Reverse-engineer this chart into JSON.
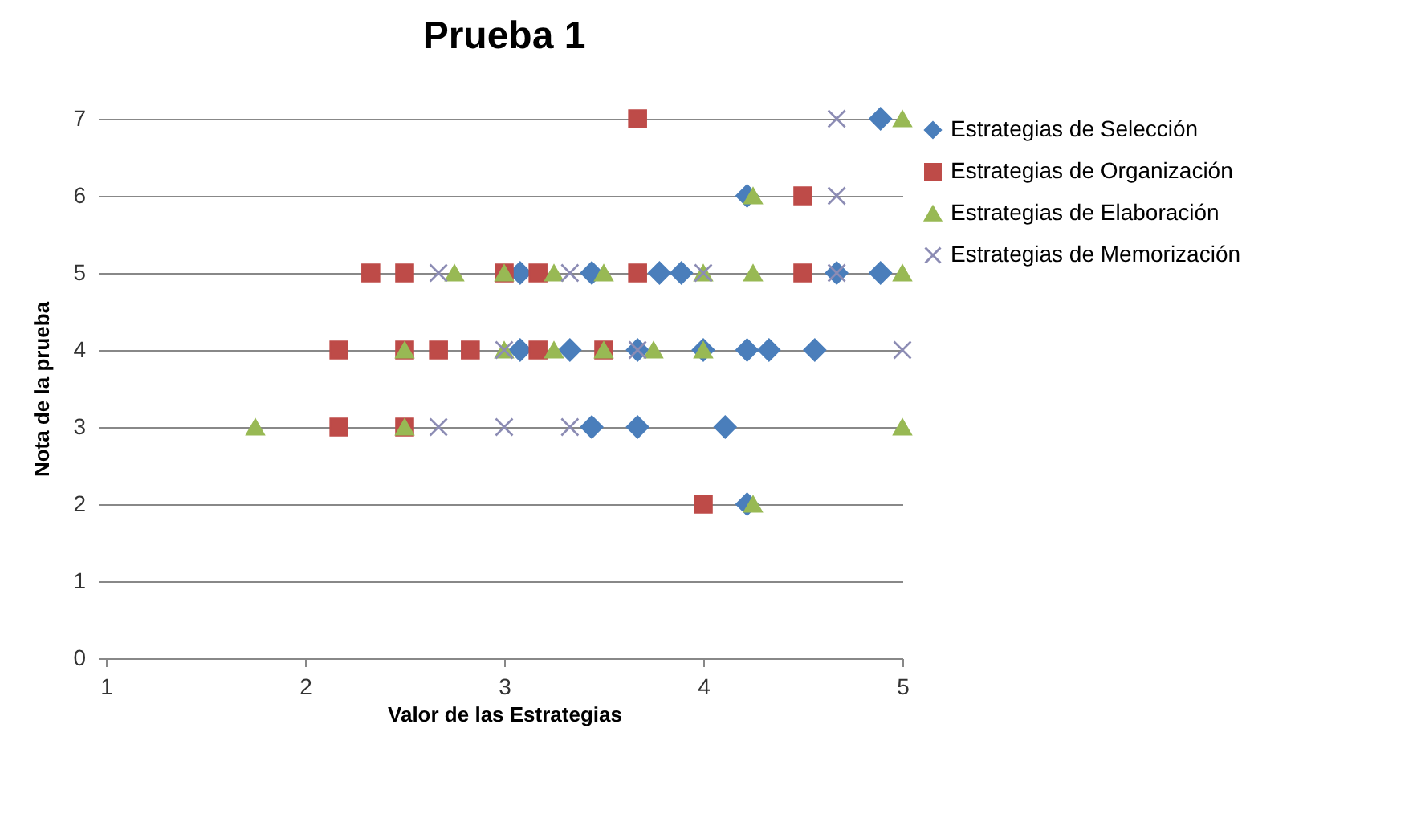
{
  "chart_data": {
    "type": "scatter",
    "title": "Prueba 1",
    "xlabel": "Valor de las Estrategias",
    "ylabel": "Nota de la prueba",
    "xlim": [
      1,
      5
    ],
    "xticks": [
      1,
      2,
      3,
      4,
      5
    ],
    "ylim": [
      0,
      7
    ],
    "yticks": [
      0,
      1,
      2,
      3,
      4,
      5,
      6,
      7
    ],
    "grid": "y",
    "legend": "right",
    "series": [
      {
        "name": "Estrategias de Selección",
        "color": "#4a7ebb",
        "marker": "diamond",
        "x": [
          4.89,
          4.22,
          3.08,
          3.44,
          3.78,
          3.89,
          4.67,
          4.89,
          3.08,
          3.33,
          3.67,
          4,
          4.22,
          4.33,
          4.56,
          3.44,
          3.67,
          4.11,
          4.22
        ],
        "values": [
          7,
          6,
          5,
          5,
          5,
          5,
          5,
          5,
          4,
          4,
          4,
          4,
          4,
          4,
          4,
          3,
          3,
          3,
          2
        ]
      },
      {
        "name": "Estrategias de Organización",
        "color": "#be4b48",
        "marker": "square",
        "x": [
          3.67,
          4.5,
          2.33,
          2.5,
          3,
          3.17,
          3.67,
          4.5,
          2.17,
          2.5,
          2.67,
          2.83,
          3.17,
          3.5,
          2.17,
          2.5,
          4
        ],
        "values": [
          7,
          6,
          5,
          5,
          5,
          5,
          5,
          5,
          4,
          4,
          4,
          4,
          4,
          4,
          3,
          3,
          2
        ]
      },
      {
        "name": "Estrategias de Elaboración",
        "color": "#98b954",
        "marker": "triangle",
        "x": [
          5,
          4.25,
          2.75,
          3,
          3.25,
          3.5,
          4,
          4.25,
          5,
          2.5,
          3,
          3.25,
          3.5,
          3.75,
          4,
          1.75,
          2.5,
          5,
          4.25
        ],
        "values": [
          7,
          6,
          5,
          5,
          5,
          5,
          5,
          5,
          5,
          4,
          4,
          4,
          4,
          4,
          4,
          3,
          3,
          3,
          2
        ]
      },
      {
        "name": "Estrategias de Memorización",
        "color": "#8c8cb4",
        "marker": "cross",
        "x": [
          4.67,
          4.67,
          2.67,
          3.33,
          4,
          4.67,
          3,
          3.67,
          5,
          2.67,
          3,
          3.33
        ],
        "values": [
          7,
          6,
          5,
          5,
          5,
          5,
          4,
          4,
          4,
          3,
          3,
          3
        ]
      }
    ]
  }
}
